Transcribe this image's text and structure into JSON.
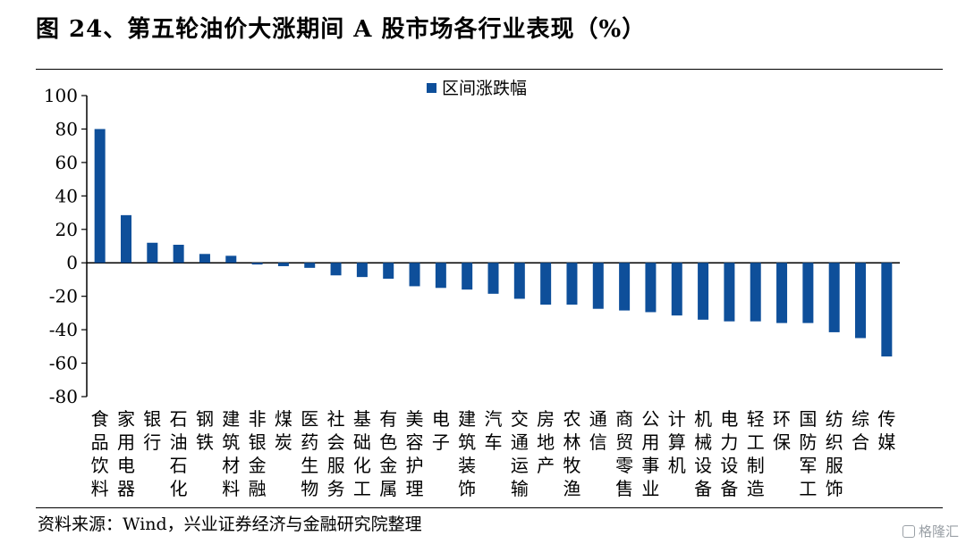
{
  "figure": {
    "title": "图 24、第五轮油价大涨期间 A 股市场各行业表现（%）",
    "source": "资料来源：Wind，兴业证券经济与金融研究院整理",
    "watermark": "格隆汇"
  },
  "colors": {
    "bar": "#0e4f9a",
    "axis": "#000000"
  },
  "chart_data": {
    "type": "bar",
    "title": "",
    "xlabel": "",
    "ylabel": "",
    "ylim": [
      -80,
      100
    ],
    "yticks": [
      "100",
      "80",
      "60",
      "40",
      "20",
      "0",
      "-20",
      "-40",
      "-60",
      "-80"
    ],
    "legend": {
      "position": "top-center",
      "label": "区间涨跌幅"
    },
    "grid": false,
    "categories": [
      "食品饮料",
      "家用电器",
      "银行",
      "石油石化",
      "钢铁",
      "建筑材料",
      "非银金融",
      "煤炭",
      "医药生物",
      "社会服务",
      "基础化工",
      "有色金属",
      "美容护理",
      "电子",
      "建筑装饰",
      "汽车",
      "交通运输",
      "房地产",
      "农林牧渔",
      "通信",
      "商贸零售",
      "公用事业",
      "计算机",
      "机械设备",
      "电力设备",
      "轻工制造",
      "环保",
      "国防军工",
      "纺织服饰",
      "综合",
      "传媒"
    ],
    "series": [
      {
        "name": "区间涨跌幅",
        "values": [
          80,
          28.5,
          12,
          10.8,
          5.3,
          4.2,
          -1,
          -2,
          -3,
          -7.5,
          -8.5,
          -9.5,
          -14,
          -15,
          -16,
          -18.5,
          -21.5,
          -25,
          -25,
          -27.5,
          -28.5,
          -29.5,
          -31.5,
          -34,
          -35,
          -35,
          -36,
          -36,
          -41.5,
          -45,
          -56
        ]
      }
    ]
  }
}
